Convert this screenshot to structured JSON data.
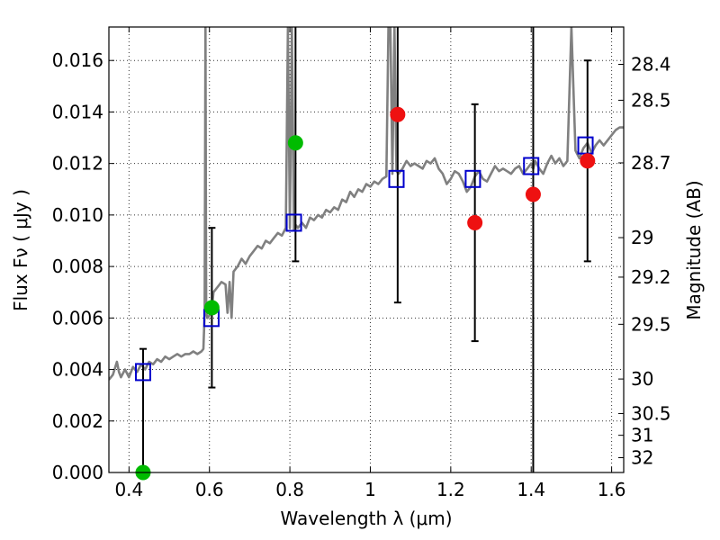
{
  "chart_data": {
    "type": "scatter",
    "title": "",
    "xlabel": "Wavelength  λ (μm)",
    "ylabel": "Flux  Fν  ( μJy )",
    "ylabel_right": "Magnitude (AB)",
    "xlim": [
      0.35,
      1.63
    ],
    "ylim": [
      0.0,
      0.0173
    ],
    "grid": true,
    "x_ticks": [
      {
        "value": 0.4,
        "label": "0.4"
      },
      {
        "value": 0.6,
        "label": "0.6"
      },
      {
        "value": 0.8,
        "label": "0.8"
      },
      {
        "value": 1.0,
        "label": "1"
      },
      {
        "value": 1.2,
        "label": "1.2"
      },
      {
        "value": 1.4,
        "label": "1.4"
      },
      {
        "value": 1.6,
        "label": "1.6"
      }
    ],
    "y_ticks": [
      {
        "value": 0.0,
        "label": "0.000"
      },
      {
        "value": 0.002,
        "label": "0.002"
      },
      {
        "value": 0.004,
        "label": "0.004"
      },
      {
        "value": 0.006,
        "label": "0.006"
      },
      {
        "value": 0.008,
        "label": "0.008"
      },
      {
        "value": 0.01,
        "label": "0.010"
      },
      {
        "value": 0.012,
        "label": "0.012"
      },
      {
        "value": 0.014,
        "label": "0.014"
      },
      {
        "value": 0.016,
        "label": "0.016"
      }
    ],
    "right_ticks": [
      {
        "value": 28.4,
        "label": "28.4"
      },
      {
        "value": 28.5,
        "label": "28.5"
      },
      {
        "value": 28.7,
        "label": "28.7"
      },
      {
        "value": 29.0,
        "label": "29"
      },
      {
        "value": 29.2,
        "label": "29.2"
      },
      {
        "value": 29.5,
        "label": "29.5"
      },
      {
        "value": 30.0,
        "label": "30"
      },
      {
        "value": 30.5,
        "label": "30.5"
      },
      {
        "value": 31.0,
        "label": "31"
      },
      {
        "value": 32.0,
        "label": "32"
      }
    ],
    "model_spectrum": {
      "color": "#808080",
      "x": [
        0.35,
        0.36,
        0.37,
        0.375,
        0.38,
        0.39,
        0.4,
        0.41,
        0.42,
        0.43,
        0.44,
        0.45,
        0.46,
        0.47,
        0.48,
        0.49,
        0.5,
        0.51,
        0.52,
        0.53,
        0.54,
        0.55,
        0.56,
        0.57,
        0.58,
        0.585,
        0.588,
        0.59,
        0.592,
        0.595,
        0.6,
        0.605,
        0.61,
        0.62,
        0.63,
        0.64,
        0.645,
        0.65,
        0.655,
        0.66,
        0.67,
        0.68,
        0.69,
        0.7,
        0.71,
        0.72,
        0.73,
        0.74,
        0.75,
        0.76,
        0.77,
        0.78,
        0.79,
        0.795,
        0.8,
        0.805,
        0.81,
        0.815,
        0.82,
        0.83,
        0.84,
        0.85,
        0.86,
        0.87,
        0.88,
        0.89,
        0.9,
        0.91,
        0.92,
        0.93,
        0.94,
        0.95,
        0.96,
        0.97,
        0.98,
        0.99,
        1.0,
        1.01,
        1.02,
        1.03,
        1.04,
        1.045,
        1.05,
        1.055,
        1.06,
        1.065,
        1.07,
        1.08,
        1.09,
        1.1,
        1.11,
        1.12,
        1.13,
        1.14,
        1.15,
        1.16,
        1.17,
        1.18,
        1.19,
        1.2,
        1.21,
        1.22,
        1.23,
        1.24,
        1.25,
        1.26,
        1.27,
        1.28,
        1.29,
        1.3,
        1.31,
        1.32,
        1.33,
        1.34,
        1.35,
        1.36,
        1.37,
        1.38,
        1.39,
        1.4,
        1.405,
        1.41,
        1.42,
        1.43,
        1.44,
        1.45,
        1.46,
        1.47,
        1.48,
        1.49,
        1.5,
        1.51,
        1.52,
        1.53,
        1.54,
        1.55,
        1.56,
        1.57,
        1.58,
        1.59,
        1.6,
        1.61,
        1.62,
        1.63
      ],
      "y": [
        0.0036,
        0.0038,
        0.0043,
        0.0039,
        0.0037,
        0.004,
        0.0037,
        0.0041,
        0.0039,
        0.0042,
        0.004,
        0.0043,
        0.0042,
        0.0044,
        0.0043,
        0.0045,
        0.0044,
        0.0045,
        0.0046,
        0.0045,
        0.0046,
        0.0046,
        0.0047,
        0.0046,
        0.0047,
        0.0048,
        0.0062,
        0.0173,
        0.0062,
        0.006,
        0.0061,
        0.0062,
        0.007,
        0.0072,
        0.0074,
        0.0073,
        0.0062,
        0.0074,
        0.006,
        0.0078,
        0.008,
        0.0083,
        0.0081,
        0.0084,
        0.0086,
        0.0088,
        0.0087,
        0.009,
        0.0089,
        0.0091,
        0.0093,
        0.0092,
        0.0095,
        0.0173,
        0.0095,
        0.0173,
        0.0094,
        0.0096,
        0.0095,
        0.0097,
        0.0095,
        0.0099,
        0.0098,
        0.01,
        0.0099,
        0.0102,
        0.0101,
        0.0103,
        0.0102,
        0.0106,
        0.0105,
        0.0109,
        0.0107,
        0.011,
        0.0109,
        0.0112,
        0.0111,
        0.0113,
        0.0112,
        0.0114,
        0.0115,
        0.0173,
        0.0173,
        0.0116,
        0.0173,
        0.0117,
        0.0116,
        0.0118,
        0.0121,
        0.0119,
        0.012,
        0.0119,
        0.0118,
        0.0121,
        0.012,
        0.0122,
        0.0118,
        0.0116,
        0.0112,
        0.0114,
        0.0117,
        0.0116,
        0.0113,
        0.0109,
        0.0111,
        0.0115,
        0.0117,
        0.0114,
        0.0113,
        0.0116,
        0.0119,
        0.0117,
        0.0118,
        0.0117,
        0.0116,
        0.0118,
        0.0119,
        0.0116,
        0.0118,
        0.012,
        0.0118,
        0.0121,
        0.0118,
        0.0116,
        0.012,
        0.0123,
        0.012,
        0.0122,
        0.0119,
        0.0121,
        0.0173,
        0.0125,
        0.0122,
        0.0126,
        0.0128,
        0.0124,
        0.0127,
        0.0129,
        0.0127,
        0.0129,
        0.0131,
        0.0133,
        0.0134,
        0.0134
      ]
    },
    "series": [
      {
        "marker": "square",
        "color": "#0000cc",
        "points": [
          {
            "x": 0.435,
            "y": 0.0039
          },
          {
            "x": 0.605,
            "y": 0.006
          },
          {
            "x": 0.81,
            "y": 0.0097
          },
          {
            "x": 1.065,
            "y": 0.0114
          },
          {
            "x": 1.255,
            "y": 0.0114
          },
          {
            "x": 1.4,
            "y": 0.0119
          },
          {
            "x": 1.535,
            "y": 0.0127
          }
        ]
      },
      {
        "marker": "circle",
        "color": "#00bb00",
        "points": [
          {
            "x": 0.435,
            "y": 0.0
          },
          {
            "x": 0.606,
            "y": 0.0064
          },
          {
            "x": 0.814,
            "y": 0.0128
          }
        ],
        "error_bars": [
          {
            "x": 0.435,
            "low": 0.0,
            "high": 0.0048
          },
          {
            "x": 0.606,
            "low": 0.0033,
            "high": 0.0095
          },
          {
            "x": 0.814,
            "low": 0.0082,
            "high": 0.0173
          }
        ]
      },
      {
        "marker": "circle",
        "color": "#ee1111",
        "points": [
          {
            "x": 1.068,
            "y": 0.0139
          },
          {
            "x": 1.26,
            "y": 0.0097
          },
          {
            "x": 1.405,
            "y": 0.0108
          },
          {
            "x": 1.54,
            "y": 0.0121
          }
        ],
        "error_bars": [
          {
            "x": 1.068,
            "low": 0.0066,
            "high": 0.0173
          },
          {
            "x": 1.26,
            "low": 0.0051,
            "high": 0.0143
          },
          {
            "x": 1.405,
            "low": 0.0,
            "high": 0.0173
          },
          {
            "x": 1.54,
            "low": 0.0082,
            "high": 0.016
          }
        ]
      }
    ]
  }
}
